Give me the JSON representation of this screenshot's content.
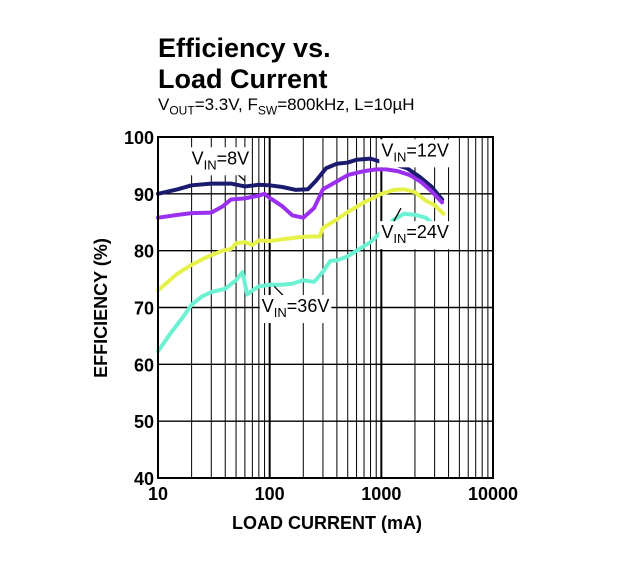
{
  "chart_data": {
    "type": "line",
    "title_line1": "Efficiency vs.",
    "title_line2": "Load Current",
    "subtitle": {
      "vout_main": "V",
      "vout_sub": "OUT",
      "vout_rest": "=3.3V, F",
      "fsw_sub": "SW",
      "fsw_rest": "=800kHz, L=10µH"
    },
    "xlabel": "LOAD CURRENT (mA)",
    "ylabel": "EFFICIENCY (%)",
    "x_scale": "log",
    "xlim": [
      10,
      10000
    ],
    "ylim": [
      40,
      100
    ],
    "x_ticks": [
      "10",
      "100",
      "1000",
      "10000"
    ],
    "y_ticks": [
      "40",
      "50",
      "60",
      "70",
      "80",
      "90",
      "100"
    ],
    "grid": true,
    "colors": {
      "vin8": "#1a1a6e",
      "vin12": "#9b2ff0",
      "vin24": "#e6f24a",
      "vin36": "#6cf2d2"
    },
    "series": [
      {
        "name": "VIN=8V",
        "key": "vin8",
        "label_main": "V",
        "label_sub": "IN",
        "label_rest": "=8V",
        "points": [
          [
            10,
            90
          ],
          [
            15,
            90.8
          ],
          [
            20,
            91.5
          ],
          [
            30,
            91.8
          ],
          [
            45,
            91.8
          ],
          [
            60,
            91.3
          ],
          [
            80,
            91.6
          ],
          [
            100,
            91.5
          ],
          [
            130,
            91.2
          ],
          [
            170,
            90.7
          ],
          [
            220,
            90.8
          ],
          [
            260,
            92.3
          ],
          [
            320,
            94.5
          ],
          [
            400,
            95.3
          ],
          [
            500,
            95.5
          ],
          [
            600,
            96.0
          ],
          [
            800,
            96.2
          ],
          [
            1000,
            95.6
          ],
          [
            1300,
            95.2
          ],
          [
            1700,
            94.5
          ],
          [
            2200,
            93.0
          ],
          [
            2800,
            91.3
          ],
          [
            3500,
            89.0
          ]
        ]
      },
      {
        "name": "VIN=12V",
        "key": "vin12",
        "label_main": "V",
        "label_sub": "IN",
        "label_rest": "=12V",
        "points": [
          [
            10,
            85.8
          ],
          [
            15,
            86.3
          ],
          [
            20,
            86.6
          ],
          [
            30,
            86.7
          ],
          [
            38,
            87.8
          ],
          [
            45,
            89.0
          ],
          [
            60,
            89.2
          ],
          [
            80,
            89.7
          ],
          [
            90,
            90.0
          ],
          [
            100,
            89.3
          ],
          [
            130,
            87.8
          ],
          [
            160,
            86.2
          ],
          [
            200,
            85.8
          ],
          [
            250,
            87.5
          ],
          [
            300,
            90.8
          ],
          [
            400,
            92.2
          ],
          [
            500,
            93.3
          ],
          [
            700,
            94.0
          ],
          [
            900,
            94.3
          ],
          [
            1100,
            94.3
          ],
          [
            1400,
            94.0
          ],
          [
            1800,
            93.3
          ],
          [
            2300,
            92.0
          ],
          [
            2800,
            90.5
          ],
          [
            3500,
            88.5
          ]
        ]
      },
      {
        "name": "VIN=24V",
        "key": "vin24",
        "label_main": "V",
        "label_sub": "IN",
        "label_rest": "=24V",
        "points": [
          [
            10,
            73
          ],
          [
            15,
            76
          ],
          [
            20,
            77.5
          ],
          [
            25,
            78.5
          ],
          [
            30,
            79.2
          ],
          [
            38,
            80
          ],
          [
            45,
            80.3
          ],
          [
            50,
            81.3
          ],
          [
            60,
            81.5
          ],
          [
            70,
            81.0
          ],
          [
            80,
            81.8
          ],
          [
            100,
            81.7
          ],
          [
            130,
            82.0
          ],
          [
            170,
            82.3
          ],
          [
            220,
            82.5
          ],
          [
            280,
            82.5
          ],
          [
            300,
            84.0
          ],
          [
            400,
            85.5
          ],
          [
            500,
            86.8
          ],
          [
            700,
            88.5
          ],
          [
            1000,
            90.0
          ],
          [
            1300,
            90.7
          ],
          [
            1600,
            90.8
          ],
          [
            2000,
            90.3
          ],
          [
            2500,
            88.8
          ],
          [
            3000,
            88.0
          ],
          [
            3600,
            86.5
          ]
        ]
      },
      {
        "name": "VIN=36V",
        "key": "vin36",
        "label_main": "V",
        "label_sub": "IN",
        "label_rest": "=36V",
        "points": [
          [
            10,
            62.3
          ],
          [
            13,
            65.5
          ],
          [
            17,
            68.5
          ],
          [
            20,
            70.5
          ],
          [
            25,
            72.0
          ],
          [
            30,
            72.7
          ],
          [
            40,
            73.3
          ],
          [
            50,
            74.8
          ],
          [
            57,
            76.2
          ],
          [
            63,
            72.3
          ],
          [
            70,
            73.0
          ],
          [
            80,
            73.7
          ],
          [
            100,
            74.0
          ],
          [
            130,
            74.0
          ],
          [
            160,
            74.2
          ],
          [
            200,
            74.8
          ],
          [
            250,
            74.5
          ],
          [
            300,
            76.3
          ],
          [
            350,
            78.2
          ],
          [
            400,
            78.3
          ],
          [
            500,
            79.0
          ],
          [
            600,
            80.0
          ],
          [
            800,
            81.5
          ],
          [
            1000,
            83.3
          ],
          [
            1300,
            85.5
          ],
          [
            1600,
            86.5
          ],
          [
            2000,
            86.3
          ],
          [
            2500,
            85.8
          ],
          [
            3000,
            84.5
          ],
          [
            3600,
            82.5
          ]
        ]
      }
    ]
  }
}
